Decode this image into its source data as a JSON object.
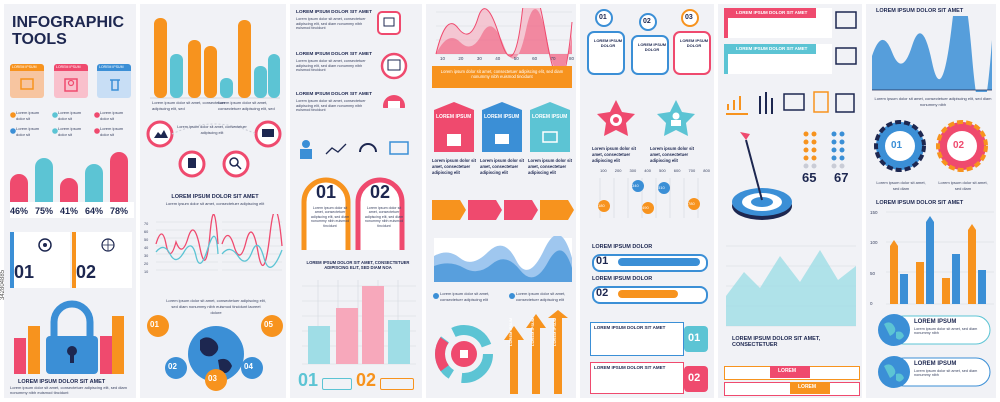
{
  "colors": {
    "orange": "#f7931e",
    "blue": "#3b8fd6",
    "teal": "#5cc4d4",
    "pink": "#ef4a6e",
    "navy": "#1d2750",
    "panel": "#f1f2f6"
  },
  "col1": {
    "title": "INFOGRAPHIC TOOLS",
    "button_labels": [
      "LOREM IPSUM",
      "LOREM IPSUM",
      "LOREM IPSUM"
    ],
    "bullets": [
      "Lorem ipsum dolor sit",
      "Lorem ipsum dolor sit",
      "Lorem ipsum dolor sit",
      "Lorem ipsum dolor sit",
      "Lorem ipsum dolor sit",
      "Lorem ipsum dolor sit"
    ],
    "percents": [
      "46%",
      "75%",
      "41%",
      "64%",
      "78%"
    ],
    "cards": [
      "01",
      "02"
    ],
    "footer_title": "LOREM IPSUM DOLOR SIT AMET",
    "footer_text": "Lorem ipsum dolor sit amet, consectetuer adipiscing elit, sed diam nonummy nibh euismod tincidunt"
  },
  "col2": {
    "caption": "Lorem ipsum dolor sit amet, consectetuer adipiscing elit, sed",
    "header": "LOREM IPSUM DOLOR SIT AMET",
    "sub": "Lorem ipsum dolor sit amet, consectetuer adipiscing elit",
    "icons_text": "Lorem ipsum dolor sit amet, consectetuer adipiscing elit",
    "chart_ticks": [
      "70",
      "60",
      "50",
      "40",
      "30",
      "20",
      "10"
    ],
    "map_text": "Lorem ipsum dolor sit amet, consectetuer adipiscing elit, sed diam nonummy nibh euismod tincidunt laoreet dolore",
    "map_numbers": [
      "01",
      "02",
      "03",
      "04",
      "05"
    ]
  },
  "col3": {
    "rows": [
      "LOREM IPSUM DOLOR SIT AMET",
      "LOREM IPSUM DOLOR SIT AMET",
      "LOREM IPSUM DOLOR SIT AMET"
    ],
    "row_text": "Lorem ipsum dolor sit amet, consectetuer adipiscing elit, sed diam nonummy nibh euismod tincidunt",
    "arches": [
      "01",
      "02"
    ],
    "arch_text": "Lorem ipsum dolor sit amet, consectetuer adipiscing elit, sed diam nonummy nibh euismod tincidunt",
    "chart_title": "LOREM IPSUM DOLOR SIT AMET, CONSECTETUER ADIPISCING ELIT, SED DIAM NOA",
    "footer_numbers": [
      "01",
      "02"
    ]
  },
  "col4": {
    "x_ticks": [
      "10",
      "20",
      "30",
      "40",
      "50",
      "60",
      "70",
      "80"
    ],
    "banner": "Lorem ipsum dolor sit amet, consectetuer adipiscing elit, sed diam nonummy nibh euismod tincidunt",
    "cards": [
      "LOREM IPSUM",
      "LOREM IPSUM",
      "LOREM IPSUM"
    ],
    "card_text": "Lorem ipsum dolor sit amet, consectetuer adipiscing elit",
    "legend": [
      "Lorem ipsum dolor sit amet, consectetuer adipiscing elit",
      "Lorem ipsum dolor sit amet, consectetuer adipiscing elit"
    ],
    "arrow_labels": [
      "LOREM IPSUM",
      "LOREM IPSUM",
      "LOREM IPSUM"
    ]
  },
  "col5": {
    "pins": [
      "01",
      "02",
      "03"
    ],
    "pin_labels": [
      "LOREM IPSUM DOLOR",
      "LOREM IPSUM DOLOR",
      "LOREM IPSUM DOLOR"
    ],
    "stars_text": "Lorem ipsum dolor sit amet, consectetuer adipiscing elit",
    "scale": [
      "100",
      "200",
      "300",
      "400",
      "500",
      "600",
      "700",
      "800"
    ],
    "bubbles": [
      "340",
      "510",
      "180",
      "490",
      "780"
    ],
    "sliders": [
      "LOREM IPSUM DOLOR",
      "LOREM IPSUM DOLOR"
    ],
    "slider_numbers": [
      "01",
      "02"
    ],
    "boxes": [
      "LOREM IPSUM DOLOR SIT AMET",
      "LOREM IPSUM DOLOR SIT AMET"
    ],
    "box_numbers": [
      "01",
      "02"
    ]
  },
  "col6": {
    "banners": [
      "LOREM IPSUM DOLOR SIT AMET",
      "LOREM IPSUM DOLOR SIT AMET"
    ],
    "stats": [
      "65",
      "67"
    ],
    "footer_title": "LOREM IPSUM DOLOR SIT AMET, CONSECTETUER",
    "footer_label": "LOREM"
  },
  "col7": {
    "header": "LOREM IPSUM DOLOR SIT AMET",
    "caption": "Lorem ipsum dolor sit amet, consectetuer adipiscing elit, sed diam nonummy nibh",
    "gears": [
      "01",
      "02"
    ],
    "gear_text": "Lorem ipsum dolor sit amet, sed diam",
    "bar_ticks": [
      "150",
      "100",
      "50",
      "0"
    ],
    "globe_labels": [
      "LOREM IPSUM",
      "LOREM IPSUM"
    ],
    "globe_text": "Lorem ipsum dolor sit amet, sed diam nonummy nibh"
  },
  "watermark": "342804885"
}
